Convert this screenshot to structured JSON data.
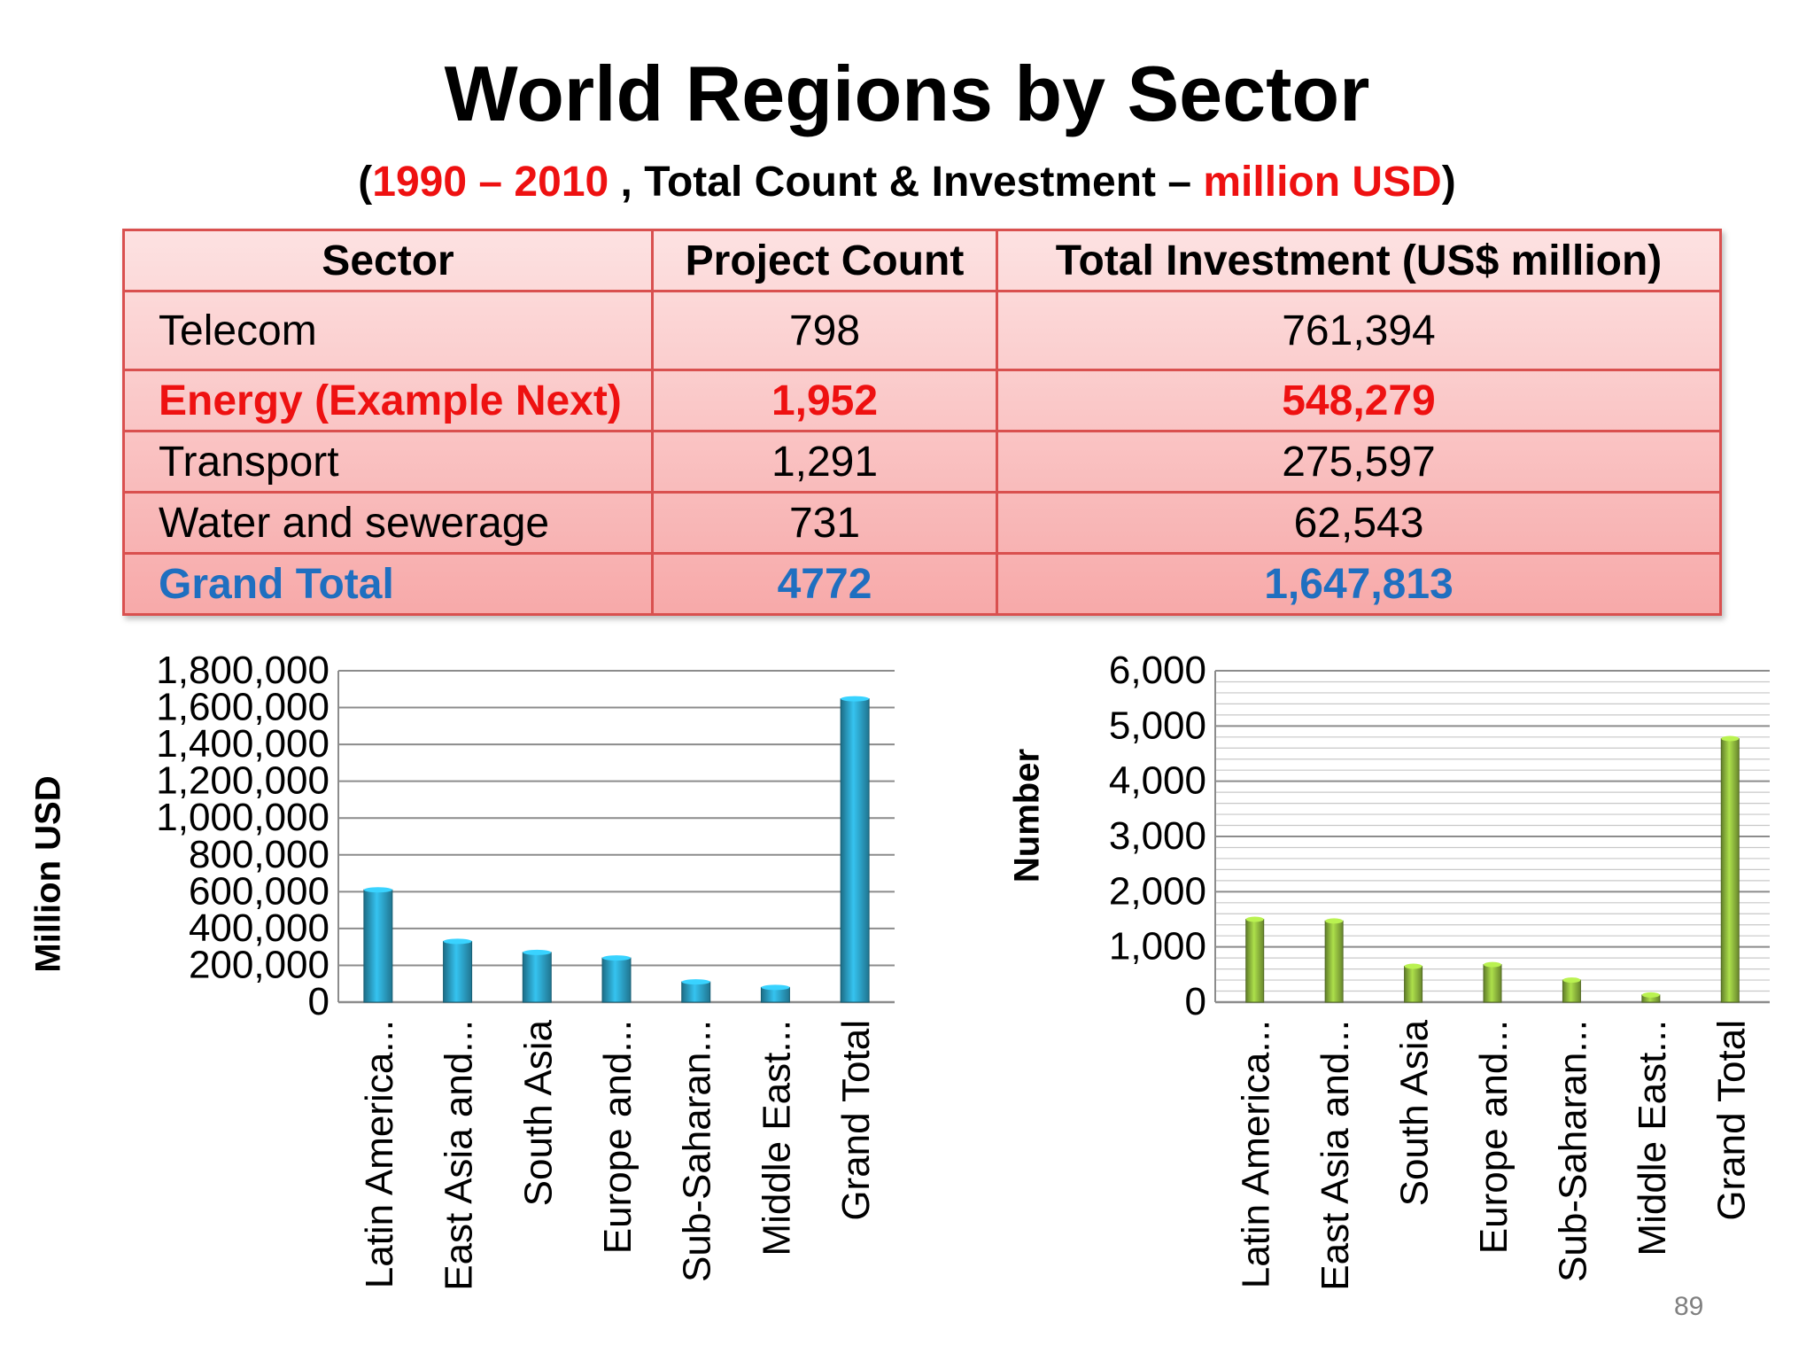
{
  "title": "World Regions by Sector",
  "subtitle": {
    "open": "(",
    "years": "1990 – 2010",
    "middle": " , Total Count & Investment – ",
    "units": "million USD",
    "close": ")"
  },
  "colors": {
    "accent_red": "#ee1111",
    "total_blue": "#1f6fc0",
    "bar_blue": "#2a9cc0",
    "bar_green": "#8ab33c"
  },
  "table": {
    "headers": [
      "Sector",
      "Project Count",
      "Total Investment (US$ million)"
    ],
    "rows": [
      {
        "sector": "Telecom",
        "count": "798",
        "investment": "761,394"
      },
      {
        "sector": "Energy (Example Next)",
        "count": "1,952",
        "investment": "548,279"
      },
      {
        "sector": "Transport",
        "count": "1,291",
        "investment": "275,597"
      },
      {
        "sector": "Water and sewerage",
        "count": "731",
        "investment": "62,543"
      },
      {
        "sector": "Grand Total",
        "count": "4772",
        "investment": "1,647,813"
      }
    ]
  },
  "chart_data": [
    {
      "type": "bar",
      "ylabel": "Million USD",
      "xlabel": "",
      "categories": [
        "Latin America...",
        "East Asia and...",
        "South Asia",
        "Europe and...",
        "Sub-Saharan...",
        "Middle East...",
        "Grand Total"
      ],
      "values": [
        610000,
        330000,
        270000,
        240000,
        110000,
        80000,
        1647813
      ],
      "ylim": [
        0,
        1800000
      ],
      "yticks": [
        "0",
        "200,000",
        "400,000",
        "600,000",
        "800,000",
        "1,000,000",
        "1,200,000",
        "1,400,000",
        "1,600,000",
        "1,800,000"
      ],
      "grid": "major",
      "color": "#2a9cc0"
    },
    {
      "type": "bar",
      "ylabel": "Number",
      "xlabel": "",
      "categories": [
        "Latin America...",
        "East Asia and...",
        "South Asia",
        "Europe and...",
        "Sub-Saharan...",
        "Middle East...",
        "Grand Total"
      ],
      "values": [
        1500,
        1470,
        650,
        680,
        400,
        130,
        4772
      ],
      "ylim": [
        0,
        6000
      ],
      "yticks": [
        "0",
        "1,000",
        "2,000",
        "3,000",
        "4,000",
        "5,000",
        "6,000"
      ],
      "grid": "major and minor",
      "color": "#8ab33c"
    }
  ],
  "page_number": "89"
}
